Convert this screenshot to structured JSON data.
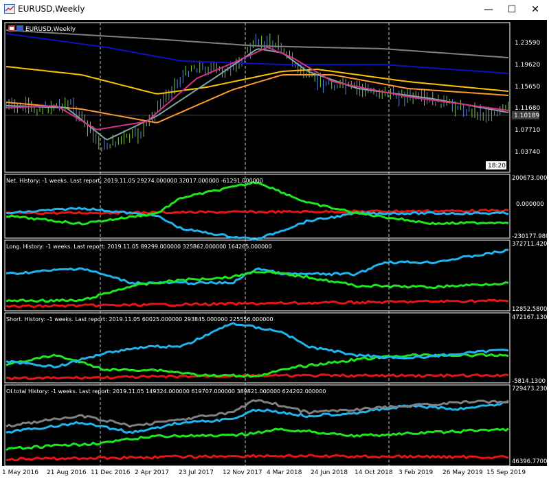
{
  "window": {
    "title": "EURUSD,Weekly",
    "minimize": "—",
    "maximize": "☐",
    "close": "✕"
  },
  "main_chart": {
    "symbol_label": "EURUSD,Weekly",
    "price_ticks": [
      "1.23590",
      "1.19620",
      "1.15650",
      "1.11680",
      "1.07710",
      "1.03740"
    ],
    "current_price": "1.10189",
    "time_badge": "18:20"
  },
  "panels": [
    {
      "id": "net",
      "label": "Net. History: -1 weeks. Last report: 2019.11.05    29274.000000  32017.000000  -61291.000000",
      "top_value": "200673.000",
      "mid_value": "0.000000",
      "bottom_value": "-230177.980"
    },
    {
      "id": "long",
      "label": "Long. History: -1 weeks. Last report: 2019.11.05    89299.000000  325862.000000  164265.000000",
      "top_value": "372711.420",
      "bottom_value": "12852.5800"
    },
    {
      "id": "short",
      "label": "Short. History: -1 weeks. Last report: 2019.11.05    60025.000000  293845.000000  225556.000000",
      "top_value": "472167.130",
      "bottom_value": "-5814.1300"
    },
    {
      "id": "oi",
      "label": "OI.total History: -1 weeks. Last report: 2019.11.05    149324.000000  619707.000000  389821.000000  624202.000000",
      "top_value": "729473.230",
      "bottom_value": "46396.7700"
    }
  ],
  "time_axis": [
    "1 May 2016",
    "21 Aug 2016",
    "11 Dec 2016",
    "2 Apr 2017",
    "23 Jul 2017",
    "12 Nov 2017",
    "4 Mar 2018",
    "24 Jun 2018",
    "14 Oct 2018",
    "3 Feb 2019",
    "26 May 2019",
    "15 Sep 2019"
  ],
  "colors": {
    "background": "#000000",
    "grid_text": "#ffffff",
    "candle_up": "#5b8bd6",
    "candle_down": "#7fc84a",
    "ma_pink": "#d6308a",
    "ma_teal": "#7fa9a3",
    "ma_orange": "#ff9a2e",
    "ma_yellow": "#ffc400",
    "ma_blue": "#1010c0",
    "ma_gray": "#808080",
    "cot_blue": "#1eb4f0",
    "cot_green": "#1ee61e",
    "cot_red": "#e61414"
  }
}
